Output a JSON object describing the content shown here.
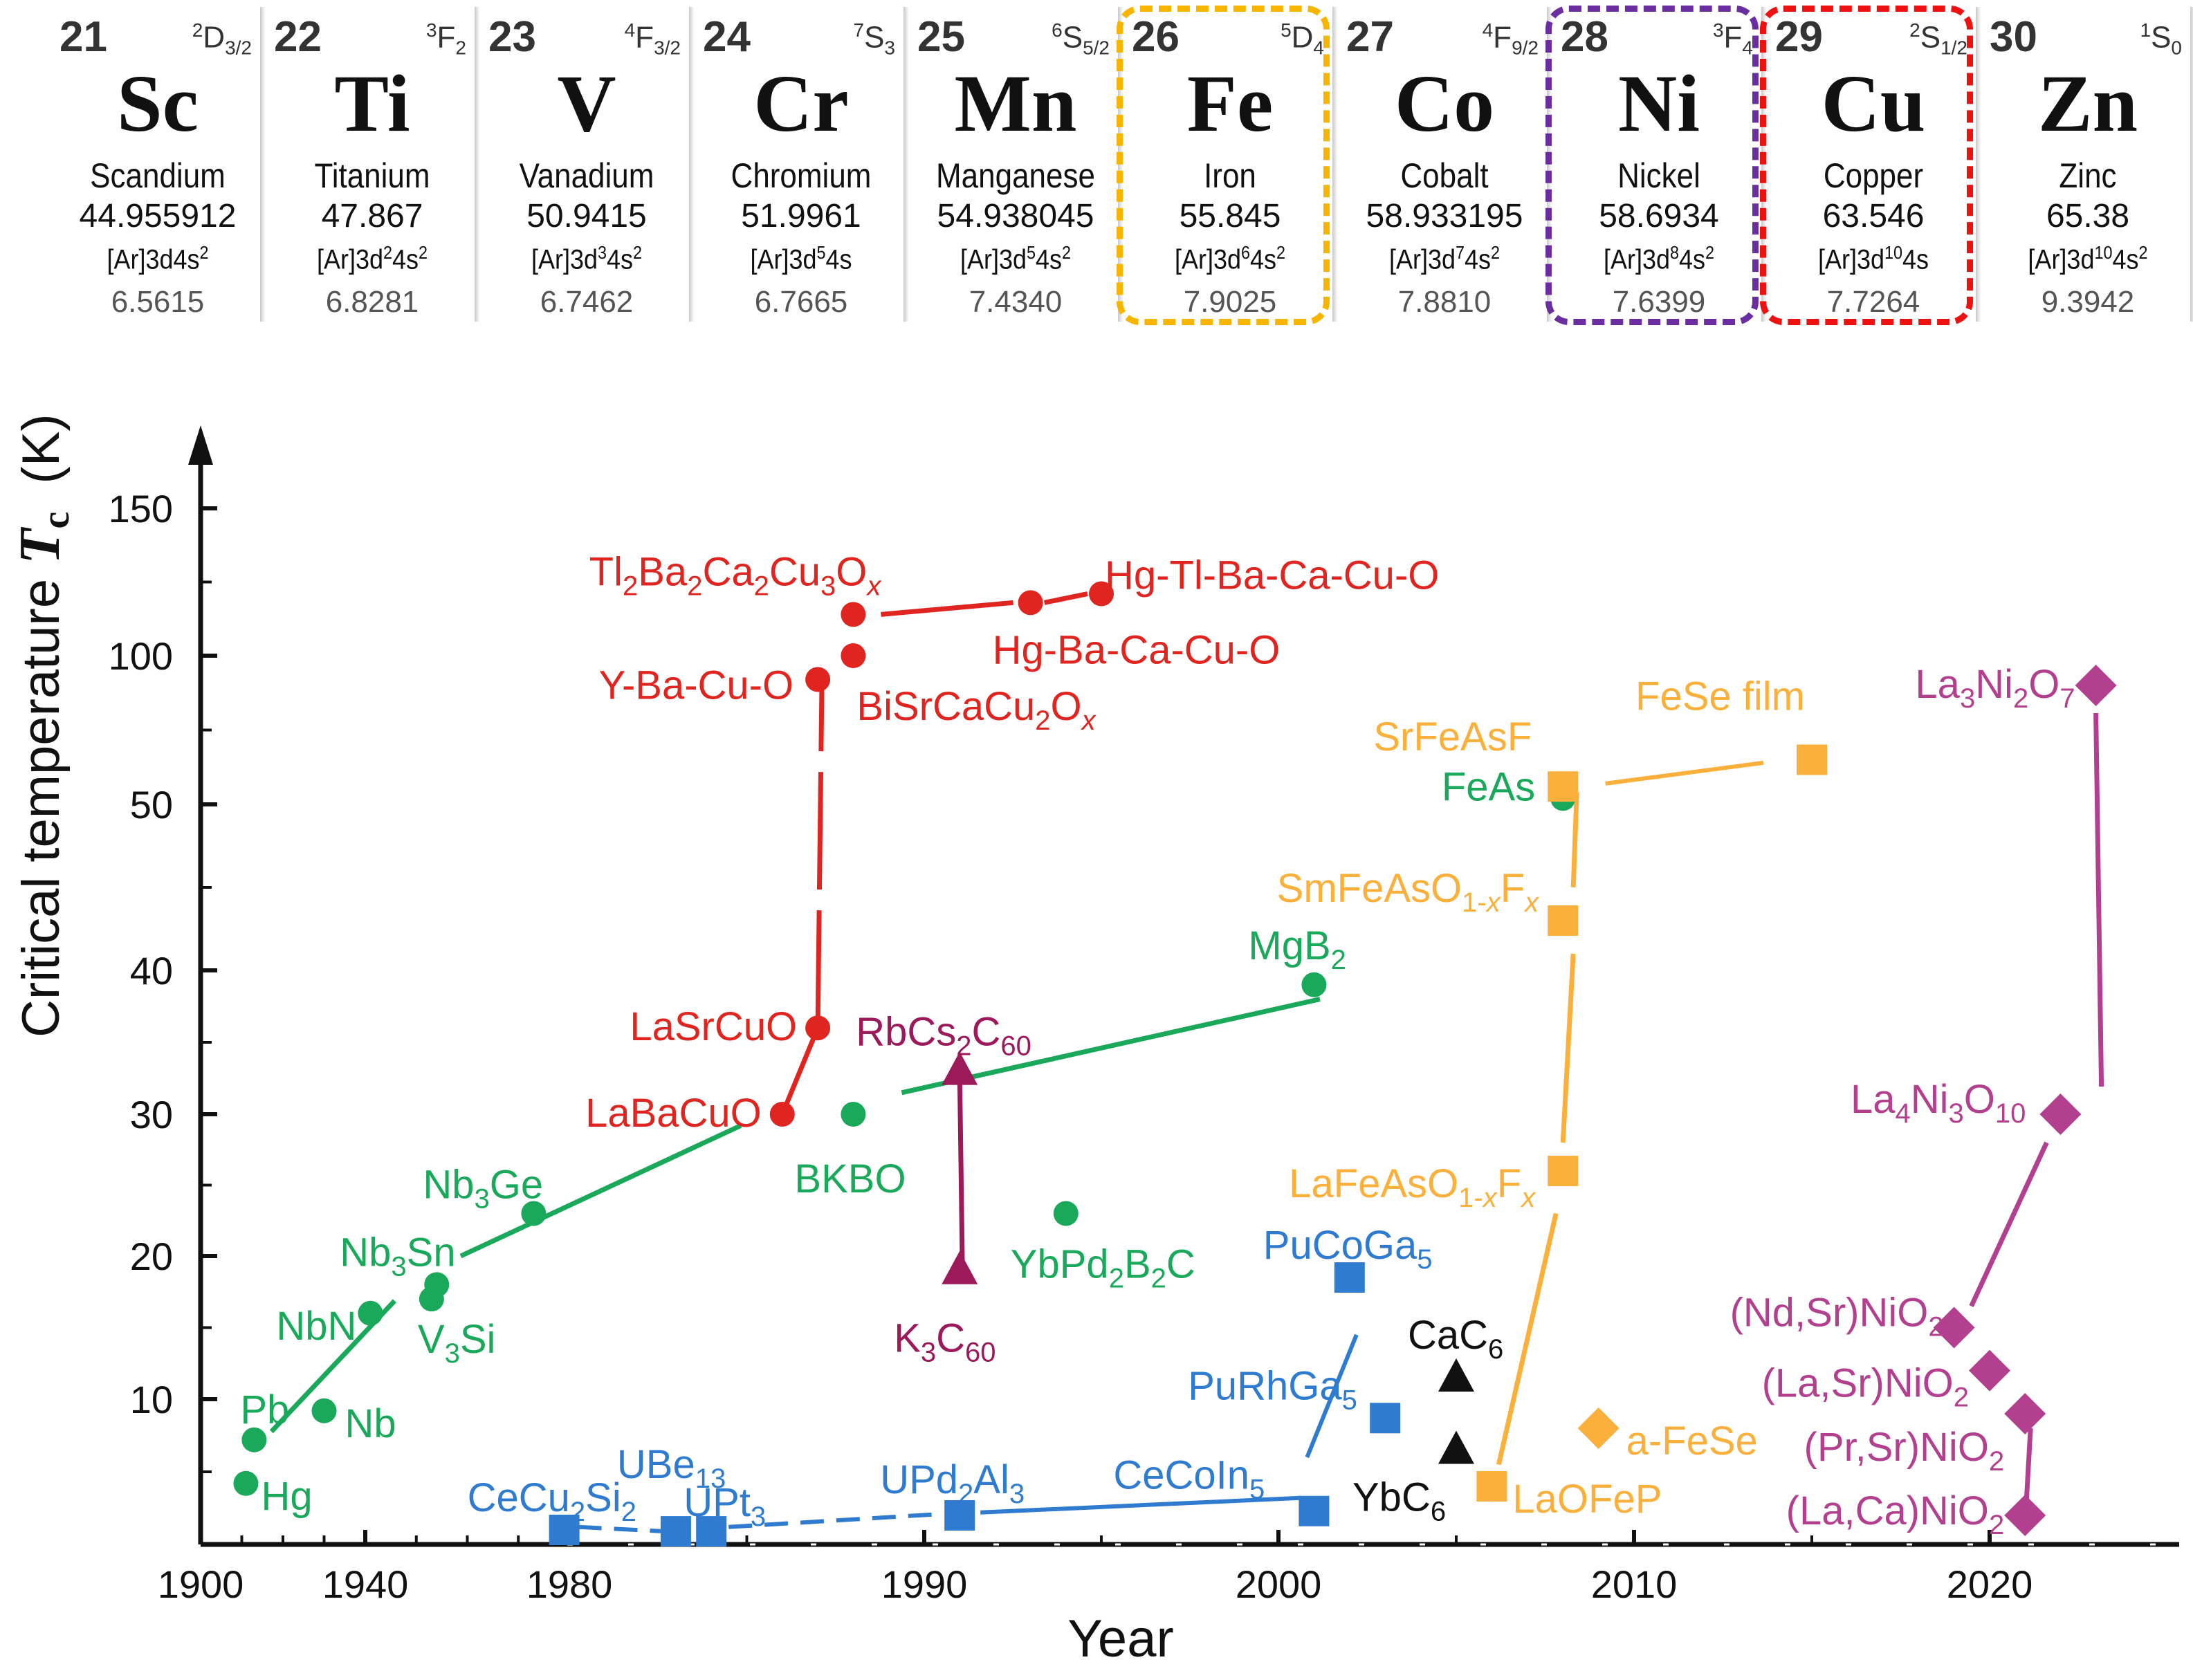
{
  "elements": [
    {
      "number": "21",
      "term": "2D3/2",
      "term_sup": "2",
      "term_main": "D",
      "term_sub": "3/2",
      "symbol": "Sc",
      "name": "Scandium",
      "mass": "44.955912",
      "config_base": "[Ar]3d4s",
      "config_sup2": "2",
      "config_d": "",
      "ionization": "6.5615"
    },
    {
      "number": "22",
      "term_sup": "3",
      "term_main": "F",
      "term_sub": "2",
      "symbol": "Ti",
      "name": "Titanium",
      "mass": "47.867",
      "config_d": "2",
      "config_sup2": "2",
      "ionization": "6.8281"
    },
    {
      "number": "23",
      "term_sup": "4",
      "term_main": "F",
      "term_sub": "3/2",
      "symbol": "V",
      "name": "Vanadium",
      "mass": "50.9415",
      "config_d": "3",
      "config_sup2": "2",
      "ionization": "6.7462"
    },
    {
      "number": "24",
      "term_sup": "7",
      "term_main": "S",
      "term_sub": "3",
      "symbol": "Cr",
      "name": "Chromium",
      "mass": "51.9961",
      "config_d": "5",
      "config_sup2": "",
      "ionization": "6.7665"
    },
    {
      "number": "25",
      "term_sup": "6",
      "term_main": "S",
      "term_sub": "5/2",
      "symbol": "Mn",
      "name": "Manganese",
      "mass": "54.938045",
      "config_d": "5",
      "config_sup2": "2",
      "ionization": "7.4340"
    },
    {
      "number": "26",
      "term_sup": "5",
      "term_main": "D",
      "term_sub": "4",
      "symbol": "Fe",
      "name": "Iron",
      "mass": "55.845",
      "config_d": "6",
      "config_sup2": "2",
      "ionization": "7.9025"
    },
    {
      "number": "27",
      "term_sup": "4",
      "term_main": "F",
      "term_sub": "9/2",
      "symbol": "Co",
      "name": "Cobalt",
      "mass": "58.933195",
      "config_d": "7",
      "config_sup2": "2",
      "ionization": "7.8810"
    },
    {
      "number": "28",
      "term_sup": "3",
      "term_main": "F",
      "term_sub": "4",
      "symbol": "Ni",
      "name": "Nickel",
      "mass": "58.6934",
      "config_d": "8",
      "config_sup2": "2",
      "ionization": "7.6399"
    },
    {
      "number": "29",
      "term_sup": "2",
      "term_main": "S",
      "term_sub": "1/2",
      "symbol": "Cu",
      "name": "Copper",
      "mass": "63.546",
      "config_d": "10",
      "config_sup2": "",
      "ionization": "7.7264"
    },
    {
      "number": "30",
      "term_sup": "1",
      "term_main": "S",
      "term_sub": "0",
      "symbol": "Zn",
      "name": "Zinc",
      "mass": "65.38",
      "config_d": "10",
      "config_sup2": "2",
      "ionization": "9.3942"
    }
  ],
  "highlights": [
    {
      "symbol": "Fe",
      "color": "#f7b500"
    },
    {
      "symbol": "Ni",
      "color": "#6a2ea0"
    },
    {
      "symbol": "Cu",
      "color": "#ee1111"
    }
  ],
  "colors": {
    "cuprate": "#e0241f",
    "conventional": "#1aa85a",
    "iron": "#fbb03b",
    "heavy_fermion": "#2e7bd0",
    "fulleride": "#9c1a5a",
    "graphite": "#111111",
    "nickelate": "#b3408f"
  },
  "chart_data": {
    "type": "scatter",
    "xlabel": "Year",
    "ylabel": "Critical temperature T_c (K)",
    "ylabel_main": "Critical temperature ",
    "ylabel_symbol": "T",
    "ylabel_sub": "c",
    "ylabel_unit": "(K)",
    "x_ticks": [
      "1900",
      "1940",
      "1980",
      "1990",
      "2000",
      "2010",
      "2020"
    ],
    "y_ticks": [
      "10",
      "20",
      "30",
      "40",
      "50",
      "100",
      "150"
    ],
    "axis_note": "Broken x and y axes: x 1900–1980 compressed; y above 50 K compressed",
    "series": [
      {
        "name": "",
        "family": "conventional",
        "marker": "circle",
        "color": "#1aa85a",
        "points": [
          {
            "label": "Hg",
            "x": 1911,
            "y": 4.2
          },
          {
            "label": "Pb",
            "x": 1913,
            "y": 7.2
          },
          {
            "label": "Nb",
            "x": 1930,
            "y": 9.2
          },
          {
            "label": "NbN",
            "x": 1941,
            "y": 16
          },
          {
            "label": "V3Si",
            "x": 1953,
            "y": 17
          },
          {
            "label": "Nb3Sn",
            "x": 1954,
            "y": 18
          },
          {
            "label": "Nb3Ge",
            "x": 1973,
            "y": 23
          },
          {
            "label": "BKBO",
            "x": 1988,
            "y": 30
          },
          {
            "label": "YbPd2B2C",
            "x": 1994,
            "y": 23
          },
          {
            "label": "MgB2",
            "x": 2001,
            "y": 39
          },
          {
            "label": "FeAs",
            "x": 2008,
            "y": 52
          }
        ]
      },
      {
        "name": "",
        "family": "cuprate",
        "marker": "circle",
        "color": "#e0241f",
        "points": [
          {
            "label": "LaBaCuO",
            "x": 1986,
            "y": 30
          },
          {
            "label": "LaSrCuO",
            "x": 1987,
            "y": 36
          },
          {
            "label": "Y-Ba-Cu-O",
            "x": 1987,
            "y": 92
          },
          {
            "label": "BiSrCaCu2Ox",
            "x": 1988,
            "y": 100
          },
          {
            "label": "Tl2Ba2Ca2Cu3Ox",
            "x": 1988,
            "y": 114
          },
          {
            "label": "Hg-Ba-Ca-Cu-O",
            "x": 1993,
            "y": 118
          },
          {
            "label": "Hg-Tl-Ba-Ca-Cu-O",
            "x": 1995,
            "y": 121
          }
        ]
      },
      {
        "name": "",
        "family": "fulleride",
        "marker": "triangle",
        "color": "#9c1a5a",
        "points": [
          {
            "label": "K3C60",
            "x": 1991,
            "y": 19
          },
          {
            "label": "RbCs2C60",
            "x": 1991,
            "y": 33
          }
        ]
      },
      {
        "name": "",
        "family": "heavy_fermion",
        "marker": "square",
        "color": "#2e7bd0",
        "points": [
          {
            "label": "CeCu2Si2",
            "x": 1979,
            "y": 1
          },
          {
            "label": "UBe13",
            "x": 1983,
            "y": 0.9
          },
          {
            "label": "UPt3",
            "x": 1984,
            "y": 0.9
          },
          {
            "label": "UPd2Al3",
            "x": 1991,
            "y": 2
          },
          {
            "label": "CeCoIn5",
            "x": 2001,
            "y": 2.3
          },
          {
            "label": "PuCoGa5",
            "x": 2002,
            "y": 18.5
          },
          {
            "label": "PuRhGa5",
            "x": 2003,
            "y": 8.7
          }
        ]
      },
      {
        "name": "",
        "family": "graphite",
        "marker": "triangle",
        "color": "#111111",
        "points": [
          {
            "label": "CaC6",
            "x": 2005,
            "y": 11.5
          },
          {
            "label": "YbC6",
            "x": 2005,
            "y": 6.5
          }
        ]
      },
      {
        "name": "",
        "family": "iron",
        "marker": "square",
        "color": "#fbb03b",
        "points": [
          {
            "label": "LaOFeP",
            "x": 2006,
            "y": 4
          },
          {
            "label": "LaFeAsO1-xFx",
            "x": 2008,
            "y": 26
          },
          {
            "label": "SmFeAsO1-xFx",
            "x": 2008,
            "y": 43
          },
          {
            "label": "SrFeAsF",
            "x": 2008,
            "y": 56
          },
          {
            "label": "FeSe film",
            "x": 2015,
            "y": 65
          }
        ]
      },
      {
        "name": "",
        "family": "iron",
        "marker": "diamond",
        "color": "#fbb03b",
        "points": [
          {
            "label": "a-FeSe",
            "x": 2009,
            "y": 8
          }
        ]
      },
      {
        "name": "",
        "family": "nickelate",
        "marker": "diamond",
        "color": "#b3408f",
        "points": [
          {
            "label": "(Nd,Sr)NiO2",
            "x": 2019,
            "y": 15
          },
          {
            "label": "(La,Sr)NiO2",
            "x": 2020,
            "y": 12
          },
          {
            "label": "(Pr,Sr)NiO2",
            "x": 2021,
            "y": 9
          },
          {
            "label": "(La,Ca)NiO2",
            "x": 2021,
            "y": 2
          },
          {
            "label": "La4Ni3O10",
            "x": 2022,
            "y": 30
          },
          {
            "label": "La3Ni2O7",
            "x": 2023,
            "y": 90
          }
        ]
      }
    ]
  }
}
